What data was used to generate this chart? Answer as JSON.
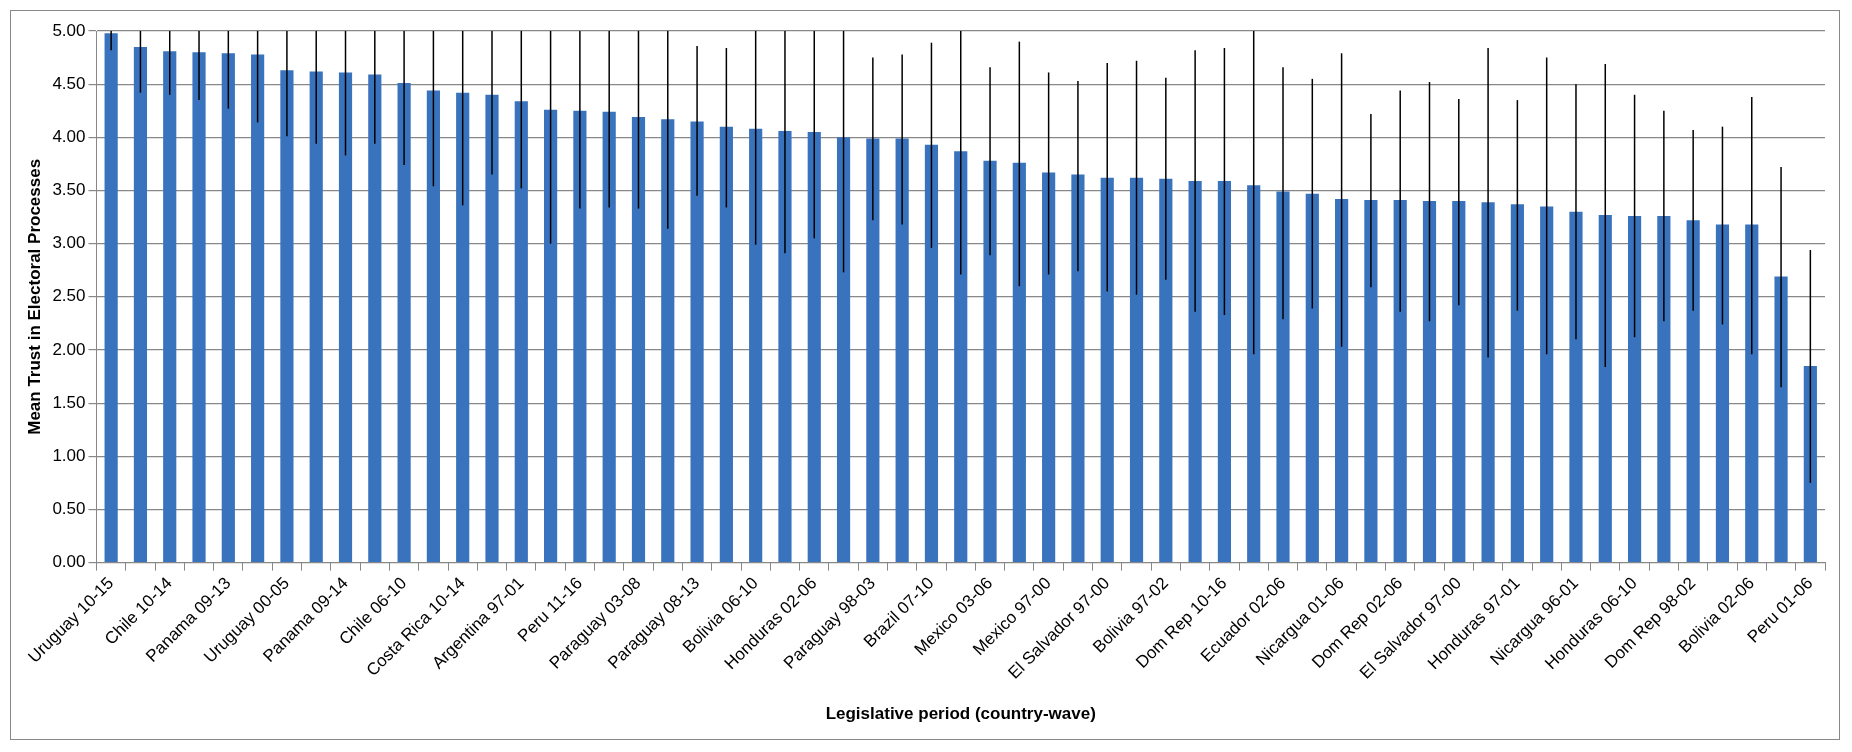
{
  "chart_data": {
    "type": "bar",
    "xlabel": "Legislative period (country-wave)",
    "ylabel": "Mean Trust in Electoral Processes",
    "categories": [
      "Uruguay 10-15",
      null,
      "Chile 10-14",
      null,
      "Panama 09-13",
      null,
      "Uruguay 00-05",
      null,
      "Panama 09-14",
      null,
      "Chile 06-10",
      null,
      "Costa Rica 10-14",
      null,
      "Argentina 97-01",
      null,
      "Peru 11-16",
      null,
      "Paraguay 03-08",
      null,
      "Paraguay 08-13",
      null,
      "Bolivia 06-10",
      null,
      "Honduras 02-06",
      null,
      "Paraguay 98-03",
      null,
      "Brazil 07-10",
      null,
      "Mexico 03-06",
      null,
      "Mexico 97-00",
      null,
      "El Salvador 97-00",
      null,
      "Bolivia 97-02",
      null,
      "Dom Rep 10-16",
      null,
      "Ecuador 02-06",
      null,
      "Nicargua 01-06",
      null,
      "Dom Rep 02-06",
      null,
      "El Salvador 97-00",
      null,
      "Honduras 97-01",
      null,
      "Nicargua 96-01",
      null,
      "Honduras 06-10",
      null,
      "Dom Rep 98-02",
      null,
      "Bolivia 02-06",
      null,
      "Peru 01-06"
    ],
    "series": [
      {
        "color": "#3a73bd",
        "values": [
          4.98,
          4.85,
          4.81,
          4.8,
          4.79,
          4.78,
          4.63,
          4.62,
          4.61,
          4.59,
          4.51,
          4.44,
          4.42,
          4.4,
          4.34,
          4.26,
          4.25,
          4.24,
          4.19,
          4.17,
          4.15,
          4.1,
          4.08,
          4.06,
          4.05,
          4.0,
          3.99,
          3.99,
          3.93,
          3.87,
          3.78,
          3.76,
          3.67,
          3.65,
          3.62,
          3.62,
          3.61,
          3.59,
          3.59,
          3.55,
          3.49,
          3.47,
          3.42,
          3.41,
          3.41,
          3.4,
          3.4,
          3.39,
          3.37,
          3.35,
          3.3,
          3.27,
          3.26,
          3.26,
          3.22,
          3.18,
          3.18,
          2.69,
          1.85
        ],
        "errors": [
          [
            4.82,
            5.0
          ],
          [
            4.42,
            5.0
          ],
          [
            4.4,
            5.0
          ],
          [
            4.35,
            5.0
          ],
          [
            4.27,
            5.0
          ],
          [
            4.14,
            5.0
          ],
          [
            4.01,
            5.0
          ],
          [
            3.94,
            5.0
          ],
          [
            3.83,
            5.0
          ],
          [
            3.94,
            5.0
          ],
          [
            3.74,
            5.0
          ],
          [
            3.54,
            5.0
          ],
          [
            3.36,
            5.0
          ],
          [
            3.65,
            5.0
          ],
          [
            3.52,
            5.0
          ],
          [
            3.0,
            5.0
          ],
          [
            3.33,
            5.0
          ],
          [
            3.34,
            5.0
          ],
          [
            3.33,
            5.0
          ],
          [
            3.14,
            5.0
          ],
          [
            3.45,
            4.86
          ],
          [
            3.34,
            4.84
          ],
          [
            2.99,
            5.0
          ],
          [
            2.91,
            5.0
          ],
          [
            3.05,
            5.0
          ],
          [
            2.73,
            5.0
          ],
          [
            3.22,
            4.75
          ],
          [
            3.18,
            4.78
          ],
          [
            2.96,
            4.89
          ],
          [
            2.71,
            5.0
          ],
          [
            2.89,
            4.66
          ],
          [
            2.6,
            4.9
          ],
          [
            2.71,
            4.61
          ],
          [
            2.74,
            4.53
          ],
          [
            2.55,
            4.7
          ],
          [
            2.52,
            4.72
          ],
          [
            2.66,
            4.56
          ],
          [
            2.36,
            4.82
          ],
          [
            2.33,
            4.84
          ],
          [
            1.96,
            5.0
          ],
          [
            2.29,
            4.66
          ],
          [
            2.39,
            4.55
          ],
          [
            2.03,
            4.79
          ],
          [
            2.59,
            4.22
          ],
          [
            2.36,
            4.44
          ],
          [
            2.27,
            4.52
          ],
          [
            2.42,
            4.36
          ],
          [
            1.93,
            4.84
          ],
          [
            2.37,
            4.35
          ],
          [
            1.96,
            4.75
          ],
          [
            2.1,
            4.5
          ],
          [
            1.84,
            4.69
          ],
          [
            2.12,
            4.4
          ],
          [
            2.27,
            4.25
          ],
          [
            2.37,
            4.07
          ],
          [
            2.24,
            4.1
          ],
          [
            1.96,
            4.38
          ],
          [
            1.65,
            3.72
          ],
          [
            0.75,
            2.94
          ]
        ]
      }
    ],
    "ylim": [
      0,
      5
    ],
    "yticks": [
      {
        "value": 0,
        "label": "0.00"
      },
      {
        "value": 0.5,
        "label": "0.50"
      },
      {
        "value": 1,
        "label": "1.00"
      },
      {
        "value": 1.5,
        "label": "1.50"
      },
      {
        "value": 2,
        "label": "2.00"
      },
      {
        "value": 2.5,
        "label": "2.50"
      },
      {
        "value": 3,
        "label": "3.00"
      },
      {
        "value": 3.5,
        "label": "3.50"
      },
      {
        "value": 4,
        "label": "4.00"
      },
      {
        "value": 4.5,
        "label": "4.50"
      },
      {
        "value": 5,
        "label": "5.00"
      }
    ],
    "grid": "y",
    "legend": false
  }
}
